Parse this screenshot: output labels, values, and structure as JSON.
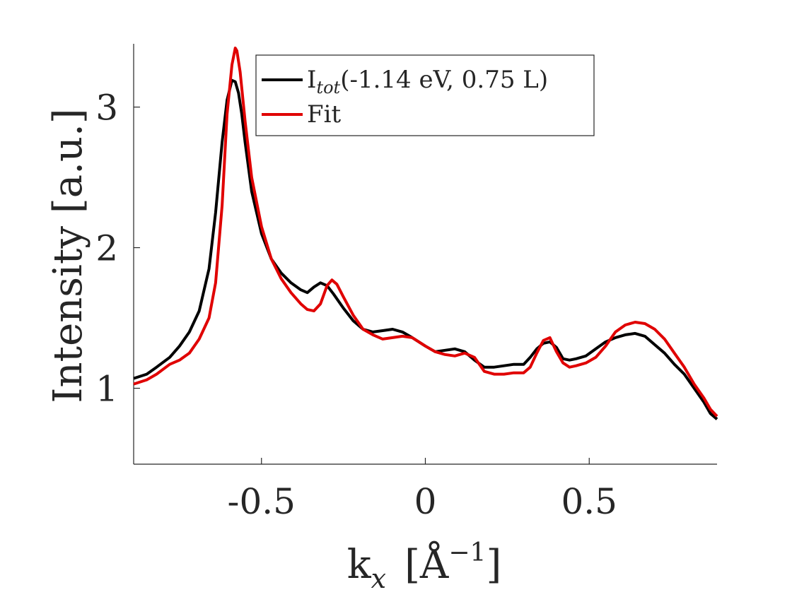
{
  "chart_data": {
    "type": "line",
    "xlabel": "k",
    "xlabel_sub": "x",
    "xlabel_unit_open": "[Å",
    "xlabel_unit_sup": "−1",
    "xlabel_unit_close": "]",
    "ylabel": "Intensity [a.u.]",
    "xlim": [
      -0.89,
      0.89
    ],
    "ylim": [
      0.46,
      3.45
    ],
    "x_ticks": [
      -0.5,
      0,
      0.5
    ],
    "x_tick_labels": [
      "-0.5",
      "0",
      "0.5"
    ],
    "y_ticks": [
      1,
      2,
      3
    ],
    "y_tick_labels": [
      "1",
      "2",
      "3"
    ],
    "grid": false,
    "legend_position": "top-right",
    "legend": {
      "entry1_main": "I",
      "entry1_sub": "tot",
      "entry1_rest": "(-1.14 eV, 0.75 L)",
      "entry2": "Fit"
    },
    "series": [
      {
        "name": "I_tot(-1.14 eV, 0.75 L)",
        "color": "#000000",
        "x": [
          -0.89,
          -0.85,
          -0.82,
          -0.78,
          -0.75,
          -0.72,
          -0.69,
          -0.66,
          -0.64,
          -0.62,
          -0.605,
          -0.59,
          -0.58,
          -0.57,
          -0.56,
          -0.55,
          -0.53,
          -0.5,
          -0.47,
          -0.44,
          -0.41,
          -0.38,
          -0.36,
          -0.34,
          -0.32,
          -0.3,
          -0.28,
          -0.25,
          -0.22,
          -0.19,
          -0.16,
          -0.13,
          -0.1,
          -0.07,
          -0.04,
          0.0,
          0.03,
          0.06,
          0.09,
          0.12,
          0.15,
          0.18,
          0.21,
          0.24,
          0.27,
          0.3,
          0.32,
          0.34,
          0.36,
          0.38,
          0.4,
          0.42,
          0.44,
          0.46,
          0.49,
          0.52,
          0.55,
          0.58,
          0.61,
          0.64,
          0.67,
          0.7,
          0.73,
          0.76,
          0.79,
          0.82,
          0.85,
          0.87,
          0.89
        ],
        "y": [
          1.07,
          1.1,
          1.15,
          1.22,
          1.3,
          1.4,
          1.55,
          1.85,
          2.25,
          2.75,
          3.05,
          3.19,
          3.18,
          3.1,
          2.95,
          2.75,
          2.4,
          2.1,
          1.92,
          1.82,
          1.75,
          1.7,
          1.68,
          1.72,
          1.75,
          1.73,
          1.67,
          1.57,
          1.48,
          1.42,
          1.4,
          1.41,
          1.42,
          1.4,
          1.36,
          1.3,
          1.26,
          1.27,
          1.28,
          1.26,
          1.2,
          1.15,
          1.15,
          1.16,
          1.17,
          1.17,
          1.22,
          1.28,
          1.32,
          1.33,
          1.29,
          1.21,
          1.2,
          1.21,
          1.23,
          1.28,
          1.33,
          1.36,
          1.38,
          1.39,
          1.37,
          1.31,
          1.25,
          1.17,
          1.1,
          1.0,
          0.9,
          0.82,
          0.78
        ]
      },
      {
        "name": "Fit",
        "color": "#e00000",
        "x": [
          -0.89,
          -0.85,
          -0.82,
          -0.78,
          -0.75,
          -0.72,
          -0.69,
          -0.66,
          -0.64,
          -0.62,
          -0.605,
          -0.59,
          -0.58,
          -0.575,
          -0.565,
          -0.55,
          -0.53,
          -0.5,
          -0.47,
          -0.44,
          -0.41,
          -0.38,
          -0.36,
          -0.34,
          -0.32,
          -0.3,
          -0.285,
          -0.27,
          -0.25,
          -0.22,
          -0.19,
          -0.16,
          -0.13,
          -0.1,
          -0.07,
          -0.04,
          0.0,
          0.03,
          0.06,
          0.09,
          0.12,
          0.15,
          0.18,
          0.21,
          0.24,
          0.27,
          0.3,
          0.32,
          0.34,
          0.36,
          0.38,
          0.4,
          0.42,
          0.44,
          0.46,
          0.49,
          0.52,
          0.55,
          0.58,
          0.61,
          0.64,
          0.67,
          0.7,
          0.73,
          0.76,
          0.79,
          0.82,
          0.85,
          0.87,
          0.89
        ],
        "y": [
          1.03,
          1.06,
          1.1,
          1.17,
          1.2,
          1.25,
          1.35,
          1.5,
          1.75,
          2.3,
          2.95,
          3.3,
          3.42,
          3.4,
          3.25,
          2.9,
          2.5,
          2.15,
          1.92,
          1.78,
          1.68,
          1.6,
          1.56,
          1.55,
          1.6,
          1.73,
          1.77,
          1.74,
          1.65,
          1.52,
          1.42,
          1.38,
          1.35,
          1.36,
          1.37,
          1.36,
          1.3,
          1.26,
          1.24,
          1.23,
          1.25,
          1.22,
          1.12,
          1.1,
          1.1,
          1.11,
          1.11,
          1.15,
          1.25,
          1.34,
          1.36,
          1.26,
          1.18,
          1.15,
          1.16,
          1.18,
          1.22,
          1.3,
          1.4,
          1.45,
          1.47,
          1.46,
          1.42,
          1.35,
          1.25,
          1.15,
          1.03,
          0.93,
          0.85,
          0.8
        ]
      }
    ]
  }
}
